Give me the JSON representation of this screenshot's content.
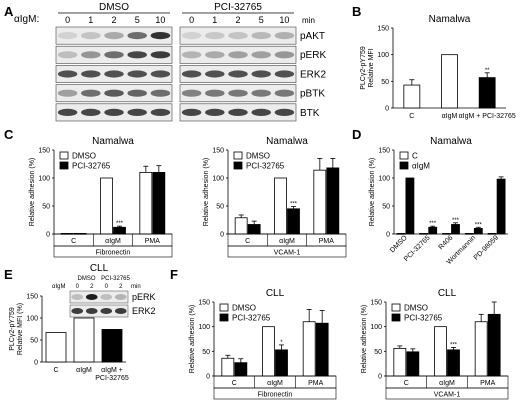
{
  "panels": {
    "A": {
      "letter": "A",
      "stimulus_label": "αIgM:",
      "groups": [
        "DMSO",
        "PCI-32765"
      ],
      "timepoints": [
        "0",
        "1",
        "2",
        "5",
        "10",
        "0",
        "1",
        "2",
        "5",
        "10"
      ],
      "time_unit": "min",
      "blots": [
        "pAKT",
        "pERK",
        "ERK2",
        "pBTK",
        "BTK"
      ]
    },
    "B": {
      "letter": "B"
    },
    "C": {
      "letter": "C"
    },
    "D": {
      "letter": "D"
    },
    "E": {
      "letter": "E",
      "inset_title": "CLL",
      "inset_groups": [
        "DMSO",
        "PCI-32765"
      ],
      "inset_stim": "αIgM",
      "inset_times": [
        "0",
        "2",
        "0",
        "2"
      ],
      "inset_unit": "min",
      "inset_blots": [
        "pERK",
        "ERK2"
      ]
    },
    "F": {
      "letter": "F"
    }
  },
  "chart_data": [
    {
      "id": "B",
      "type": "bar",
      "title": "Namalwa",
      "ylabel": "PLCγ2-pY759\nRelative MFI",
      "ylim": [
        0,
        150
      ],
      "yticks": [
        0,
        50,
        100,
        150
      ],
      "categories": [
        "C",
        "αIgM",
        "αIgM + PCI-32765"
      ],
      "values": [
        43,
        100,
        57
      ],
      "errors": [
        10,
        0,
        9
      ],
      "fills": [
        "#ffffff",
        "#ffffff",
        "#000000"
      ],
      "sig": [
        "",
        "",
        "**"
      ]
    },
    {
      "id": "C1",
      "type": "bar",
      "title": "Namalwa",
      "ylabel": "Relative adhesion (%)",
      "ylim": [
        0,
        150
      ],
      "yticks": [
        0,
        50,
        100,
        150
      ],
      "categories": [
        "C",
        "αIgM",
        "PMA"
      ],
      "series": [
        {
          "name": "DMSO",
          "values": [
            1,
            100,
            110
          ],
          "errors": [
            0,
            0,
            11
          ]
        },
        {
          "name": "PCI-32765",
          "values": [
            1,
            12,
            110
          ],
          "errors": [
            0,
            2,
            12
          ]
        }
      ],
      "sig": [
        "",
        "***",
        ""
      ],
      "coating": "Fibronectin",
      "legend": "top-left"
    },
    {
      "id": "C2",
      "type": "bar",
      "title": "Namalwa",
      "ylabel": "Relative adhesion (%)",
      "ylim": [
        0,
        150
      ],
      "yticks": [
        0,
        50,
        100,
        150
      ],
      "categories": [
        "C",
        "αIgM",
        "PMA"
      ],
      "series": [
        {
          "name": "DMSO",
          "values": [
            29,
            100,
            114
          ],
          "errors": [
            5,
            0,
            21
          ]
        },
        {
          "name": "PCI-32765",
          "values": [
            17,
            45,
            118
          ],
          "errors": [
            6,
            4,
            17
          ]
        }
      ],
      "sig": [
        "",
        "***",
        ""
      ],
      "coating": "VCAM-1",
      "legend": "top-left"
    },
    {
      "id": "D",
      "type": "bar",
      "title": "Namalwa",
      "ylabel": "Relative adhesion (%)",
      "ylim": [
        0,
        150
      ],
      "yticks": [
        0,
        50,
        100,
        150
      ],
      "categories": [
        "DMSO",
        "PCI-32765",
        "R406",
        "Wortmannin",
        "PD-98059"
      ],
      "series": [
        {
          "name": "C",
          "values": [
            1,
            1,
            1,
            1,
            1
          ],
          "errors": [
            0,
            0,
            0,
            0,
            0
          ]
        },
        {
          "name": "αIgM",
          "values": [
            100,
            12,
            17,
            10,
            98
          ],
          "errors": [
            0,
            2,
            3,
            2,
            4
          ]
        }
      ],
      "sig": [
        "",
        "***",
        "***",
        "***",
        ""
      ],
      "legend": "top-left"
    },
    {
      "id": "E",
      "type": "bar",
      "ylabel": "PLCγ2-pY759\nRelative MFI (%)",
      "ylim": [
        0,
        150
      ],
      "yticks": [
        0,
        50,
        100,
        150
      ],
      "categories": [
        "C",
        "αIgM",
        "αIgM +\nPCI-32765"
      ],
      "values": [
        67,
        100,
        74
      ],
      "errors": [
        0,
        0,
        0
      ],
      "fills": [
        "#ffffff",
        "#ffffff",
        "#000000"
      ],
      "sig": [
        "",
        "",
        ""
      ]
    },
    {
      "id": "F1",
      "type": "bar",
      "title": "CLL",
      "ylabel": "Relative adhesion (%)",
      "ylim": [
        0,
        150
      ],
      "yticks": [
        0,
        50,
        100,
        150
      ],
      "categories": [
        "C",
        "αIgM",
        "PMA"
      ],
      "series": [
        {
          "name": "DMSO",
          "values": [
            36,
            100,
            110
          ],
          "errors": [
            6,
            0,
            25
          ]
        },
        {
          "name": "PCI-32765",
          "values": [
            27,
            53,
            107
          ],
          "errors": [
            8,
            10,
            26
          ]
        }
      ],
      "sig": [
        "",
        "*",
        ""
      ],
      "coating": "Fibronectin",
      "legend": "top-left"
    },
    {
      "id": "F2",
      "type": "bar",
      "title": "CLL",
      "ylabel": "Relative adhesion (%)",
      "ylim": [
        0,
        150
      ],
      "yticks": [
        0,
        50,
        100,
        150
      ],
      "categories": [
        "C",
        "αIgM",
        "PMA"
      ],
      "series": [
        {
          "name": "DMSO",
          "values": [
            56,
            100,
            110
          ],
          "errors": [
            5,
            0,
            15
          ]
        },
        {
          "name": "PCI-32765",
          "values": [
            49,
            53,
            125
          ],
          "errors": [
            6,
            5,
            25
          ]
        }
      ],
      "sig": [
        "",
        "***",
        ""
      ],
      "coating": "VCAM-1",
      "legend": "top-left"
    }
  ]
}
